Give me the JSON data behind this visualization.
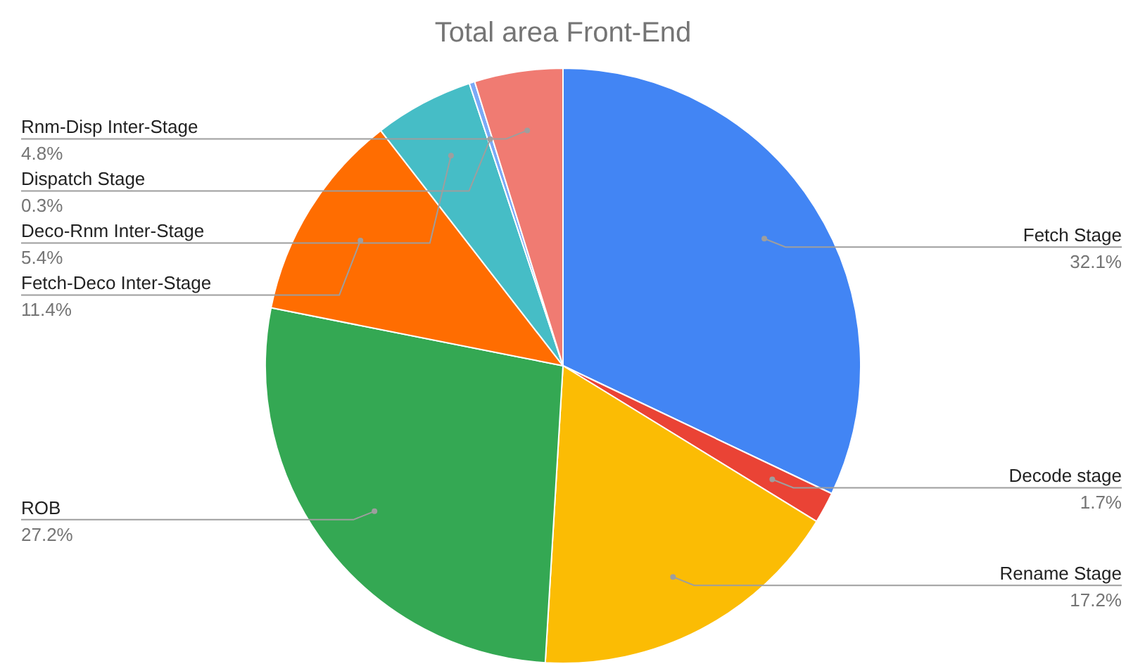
{
  "chart_data": {
    "type": "pie",
    "title": "Total area Front-End",
    "categories": [
      "Fetch Stage",
      "Decode stage",
      "Rename Stage",
      "ROB",
      "Fetch-Deco Inter-Stage",
      "Deco-Rnm Inter-Stage",
      "Dispatch Stage",
      "Rnm-Disp Inter-Stage"
    ],
    "values": [
      32.1,
      1.7,
      17.2,
      27.2,
      11.4,
      5.4,
      0.3,
      4.8
    ],
    "value_labels": [
      "32.1%",
      "1.7%",
      "17.2%",
      "27.2%",
      "11.4%",
      "5.4%",
      "0.3%",
      "4.8%"
    ],
    "colors": [
      "#4285f4",
      "#ea4335",
      "#fbbc04",
      "#34a853",
      "#ff6d01",
      "#46bdc6",
      "#7baaf7",
      "#f07b72"
    ],
    "legend": false
  }
}
